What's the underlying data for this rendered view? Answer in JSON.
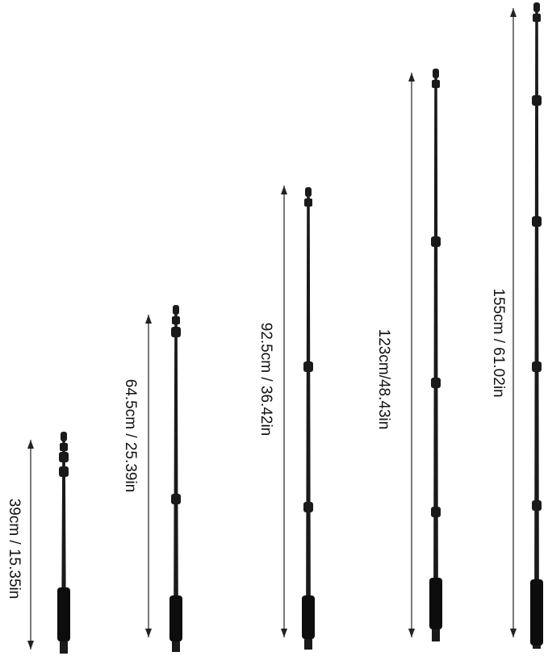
{
  "poles": [
    {
      "label": "39cm / 15.35in",
      "sections": 3
    },
    {
      "label": "64.5cm / 25.39in",
      "sections": 4
    },
    {
      "label": "92.5cm / 36.42in",
      "sections": 4
    },
    {
      "label": "123cm/48.43in",
      "sections": 5
    },
    {
      "label": "155cm / 61.02in",
      "sections": 5
    }
  ],
  "colors": {
    "pole": "#1a1a1a",
    "grip": "#0d0d0d",
    "arrow": "#222222"
  }
}
